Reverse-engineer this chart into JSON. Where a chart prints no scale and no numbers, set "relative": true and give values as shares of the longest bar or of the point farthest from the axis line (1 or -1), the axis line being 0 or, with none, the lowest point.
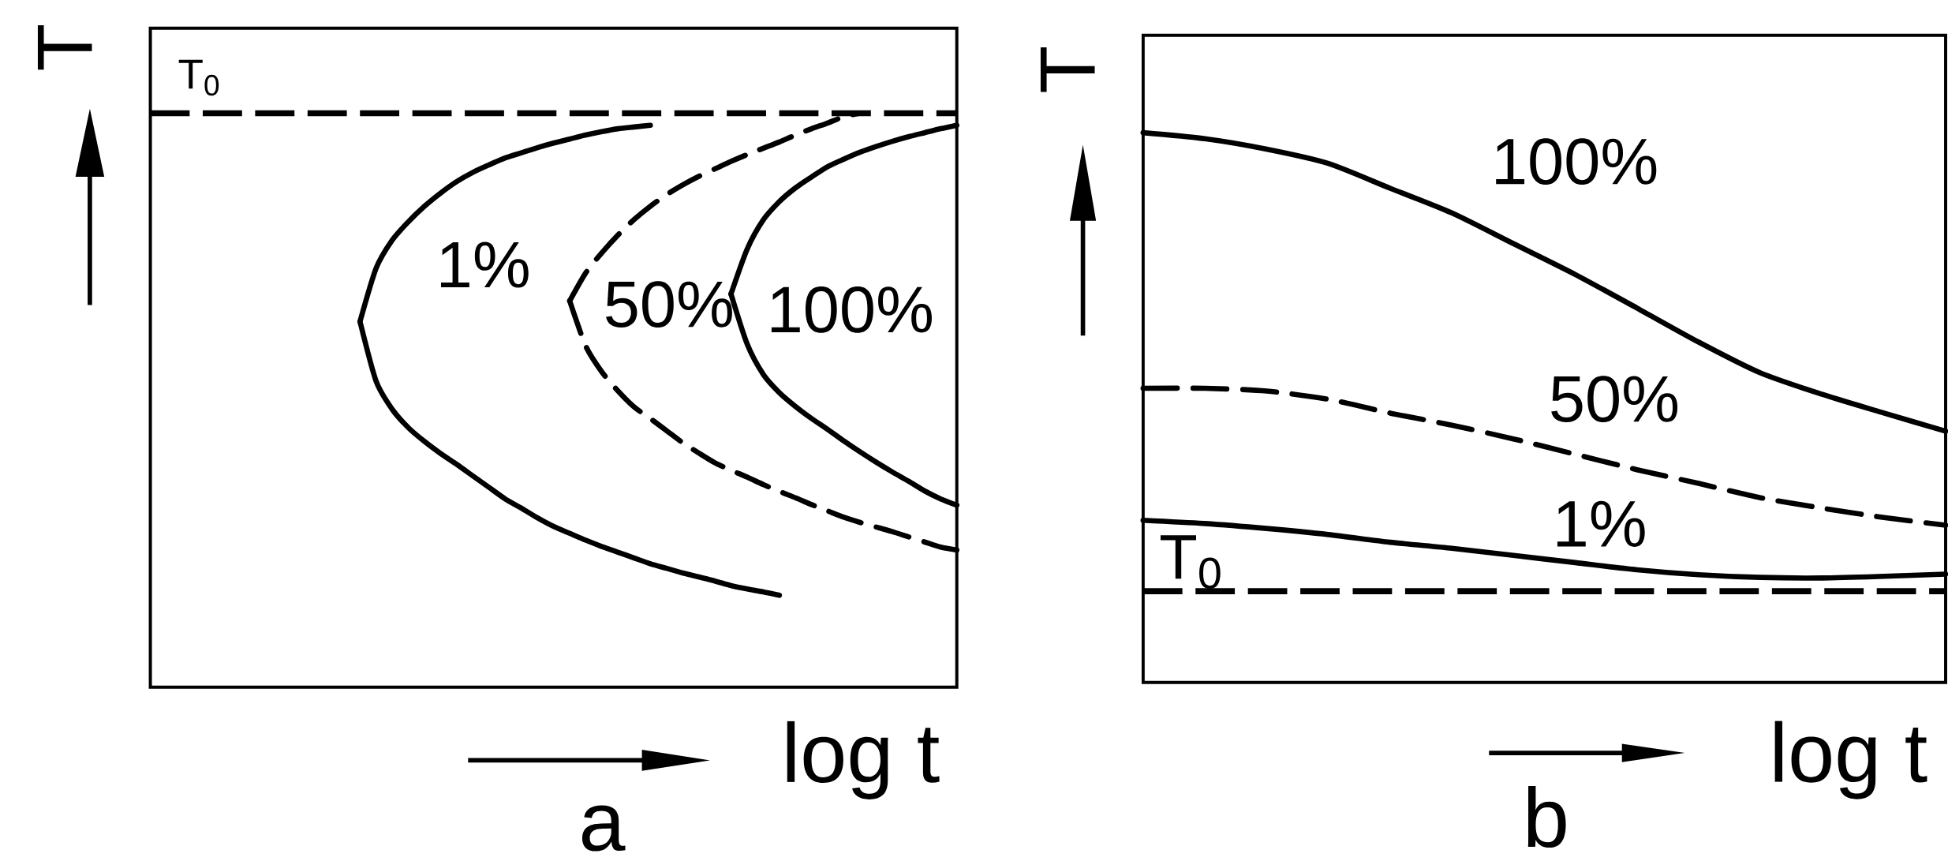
{
  "chart_data": [
    {
      "type": "line",
      "title": "a",
      "xlabel": "log t",
      "ylabel": "T",
      "relative": true,
      "categories": [
        null,
        null,
        null,
        null,
        null,
        null,
        null,
        null,
        null,
        null,
        null,
        null,
        null,
        null,
        null,
        null,
        null,
        null,
        null,
        null,
        null,
        null,
        null,
        null,
        null,
        null,
        null,
        null,
        null,
        null,
        null,
        null,
        null,
        null,
        null,
        null,
        null,
        null,
        null,
        null,
        null,
        null,
        null,
        null,
        null,
        null,
        null,
        null,
        null,
        null,
        null
      ],
      "series": [
        {
          "name": "1%",
          "color": "#000000",
          "line_style": "solid",
          "values": [
            null,
            null,
            null,
            null,
            null,
            null,
            null,
            null,
            null,
            null,
            null,
            null,
            null,
            0.637,
            0.73,
            0.779,
            0.811,
            0.838,
            0.861,
            0.881,
            0.897,
            0.91,
            0.922,
            0.931,
            0.94,
            0.948,
            0.955,
            0.962,
            0.968,
            0.973,
            0.976,
            0.979,
            null,
            null,
            null,
            null,
            null,
            null,
            null,
            null,
            null,
            null,
            null,
            null,
            null,
            null,
            null,
            null,
            null,
            null,
            null
          ]
        },
        {
          "color": "#000000",
          "line_style": "solid",
          "values": [
            null,
            null,
            null,
            null,
            null,
            null,
            null,
            null,
            null,
            null,
            null,
            null,
            null,
            0.637,
            0.533,
            0.484,
            0.452,
            0.428,
            0.407,
            0.388,
            0.368,
            0.348,
            0.328,
            0.312,
            0.295,
            0.28,
            0.268,
            0.256,
            0.245,
            0.235,
            0.225,
            0.215,
            0.207,
            0.199,
            0.192,
            0.185,
            0.177,
            0.171,
            0.166,
            0.16,
            null,
            null,
            null,
            null,
            null,
            null,
            null,
            null,
            null,
            null,
            null
          ]
        },
        {
          "name": "50%",
          "color": "#000000",
          "line_style": "dashed",
          "values": [
            null,
            null,
            null,
            null,
            null,
            null,
            null,
            null,
            null,
            null,
            null,
            null,
            null,
            null,
            null,
            null,
            null,
            null,
            null,
            null,
            null,
            null,
            null,
            null,
            null,
            null,
            0.673,
            0.722,
            0.757,
            0.788,
            0.815,
            0.838,
            0.858,
            0.875,
            0.89,
            0.903,
            0.916,
            0.928,
            0.939,
            0.95,
            0.962,
            0.973,
            0.983,
            0.994,
            1.0,
            null,
            null,
            null,
            null,
            null,
            null
          ]
        },
        {
          "color": "#000000",
          "line_style": "dashed",
          "values": [
            null,
            null,
            null,
            null,
            null,
            null,
            null,
            null,
            null,
            null,
            null,
            null,
            null,
            null,
            null,
            null,
            null,
            null,
            null,
            null,
            null,
            null,
            null,
            null,
            null,
            null,
            0.673,
            0.594,
            0.549,
            0.516,
            0.488,
            0.468,
            0.447,
            0.426,
            0.408,
            0.391,
            0.378,
            0.366,
            0.353,
            0.341,
            0.33,
            0.318,
            0.307,
            0.296,
            0.287,
            0.279,
            0.271,
            0.262,
            0.253,
            0.244,
            0.239
          ]
        },
        {
          "name": "100%",
          "color": "#000000",
          "line_style": "solid",
          "values": [
            null,
            null,
            null,
            null,
            null,
            null,
            null,
            null,
            null,
            null,
            null,
            null,
            null,
            null,
            null,
            null,
            null,
            null,
            null,
            null,
            null,
            null,
            null,
            null,
            null,
            null,
            null,
            null,
            null,
            null,
            null,
            null,
            null,
            null,
            null,
            null,
            0.685,
            0.763,
            0.814,
            0.846,
            0.87,
            0.889,
            0.907,
            0.92,
            0.932,
            0.942,
            0.951,
            0.959,
            0.966,
            0.973,
            0.979
          ]
        },
        {
          "color": "#000000",
          "line_style": "solid",
          "values": [
            null,
            null,
            null,
            null,
            null,
            null,
            null,
            null,
            null,
            null,
            null,
            null,
            null,
            null,
            null,
            null,
            null,
            null,
            null,
            null,
            null,
            null,
            null,
            null,
            null,
            null,
            null,
            null,
            null,
            null,
            null,
            null,
            null,
            null,
            null,
            null,
            0.685,
            0.598,
            0.545,
            0.513,
            0.489,
            0.468,
            0.449,
            0.429,
            0.41,
            0.392,
            0.375,
            0.359,
            0.342,
            0.328,
            0.317
          ]
        }
      ],
      "ref_lines": [
        {
          "axis": "y",
          "value": 1.0,
          "label": "T$_{0}$",
          "color": "#000000",
          "line_style": "dashed"
        }
      ]
    },
    {
      "type": "line",
      "title": "b",
      "xlabel": "log t",
      "ylabel": "T",
      "relative": true,
      "categories": [
        null,
        null,
        null,
        null,
        null,
        null,
        null,
        null,
        null,
        null,
        null,
        null,
        null,
        null
      ],
      "series": [
        {
          "name": "1%",
          "color": "#000000",
          "line_style": "solid",
          "values": [
            0.295,
            0.289,
            0.28,
            0.269,
            0.255,
            0.244,
            0.231,
            0.218,
            0.205,
            0.196,
            0.191,
            0.19,
            0.193,
            0.197
          ]
        },
        {
          "name": "50%",
          "color": "#000000",
          "line_style": "dashed",
          "values": [
            0.535,
            0.535,
            0.53,
            0.515,
            0.49,
            0.468,
            0.443,
            0.415,
            0.387,
            0.362,
            0.336,
            0.317,
            0.3,
            0.286
          ]
        },
        {
          "name": "100%",
          "color": "#000000",
          "line_style": "solid",
          "values": [
            1.0,
            0.989,
            0.97,
            0.944,
            0.899,
            0.854,
            0.798,
            0.742,
            0.681,
            0.619,
            0.563,
            0.524,
            0.49,
            0.457
          ]
        }
      ],
      "ref_lines": [
        {
          "axis": "y",
          "value": 0.166,
          "label": "T$_{0}$",
          "color": "#000000",
          "line_style": "dashed"
        }
      ]
    }
  ]
}
